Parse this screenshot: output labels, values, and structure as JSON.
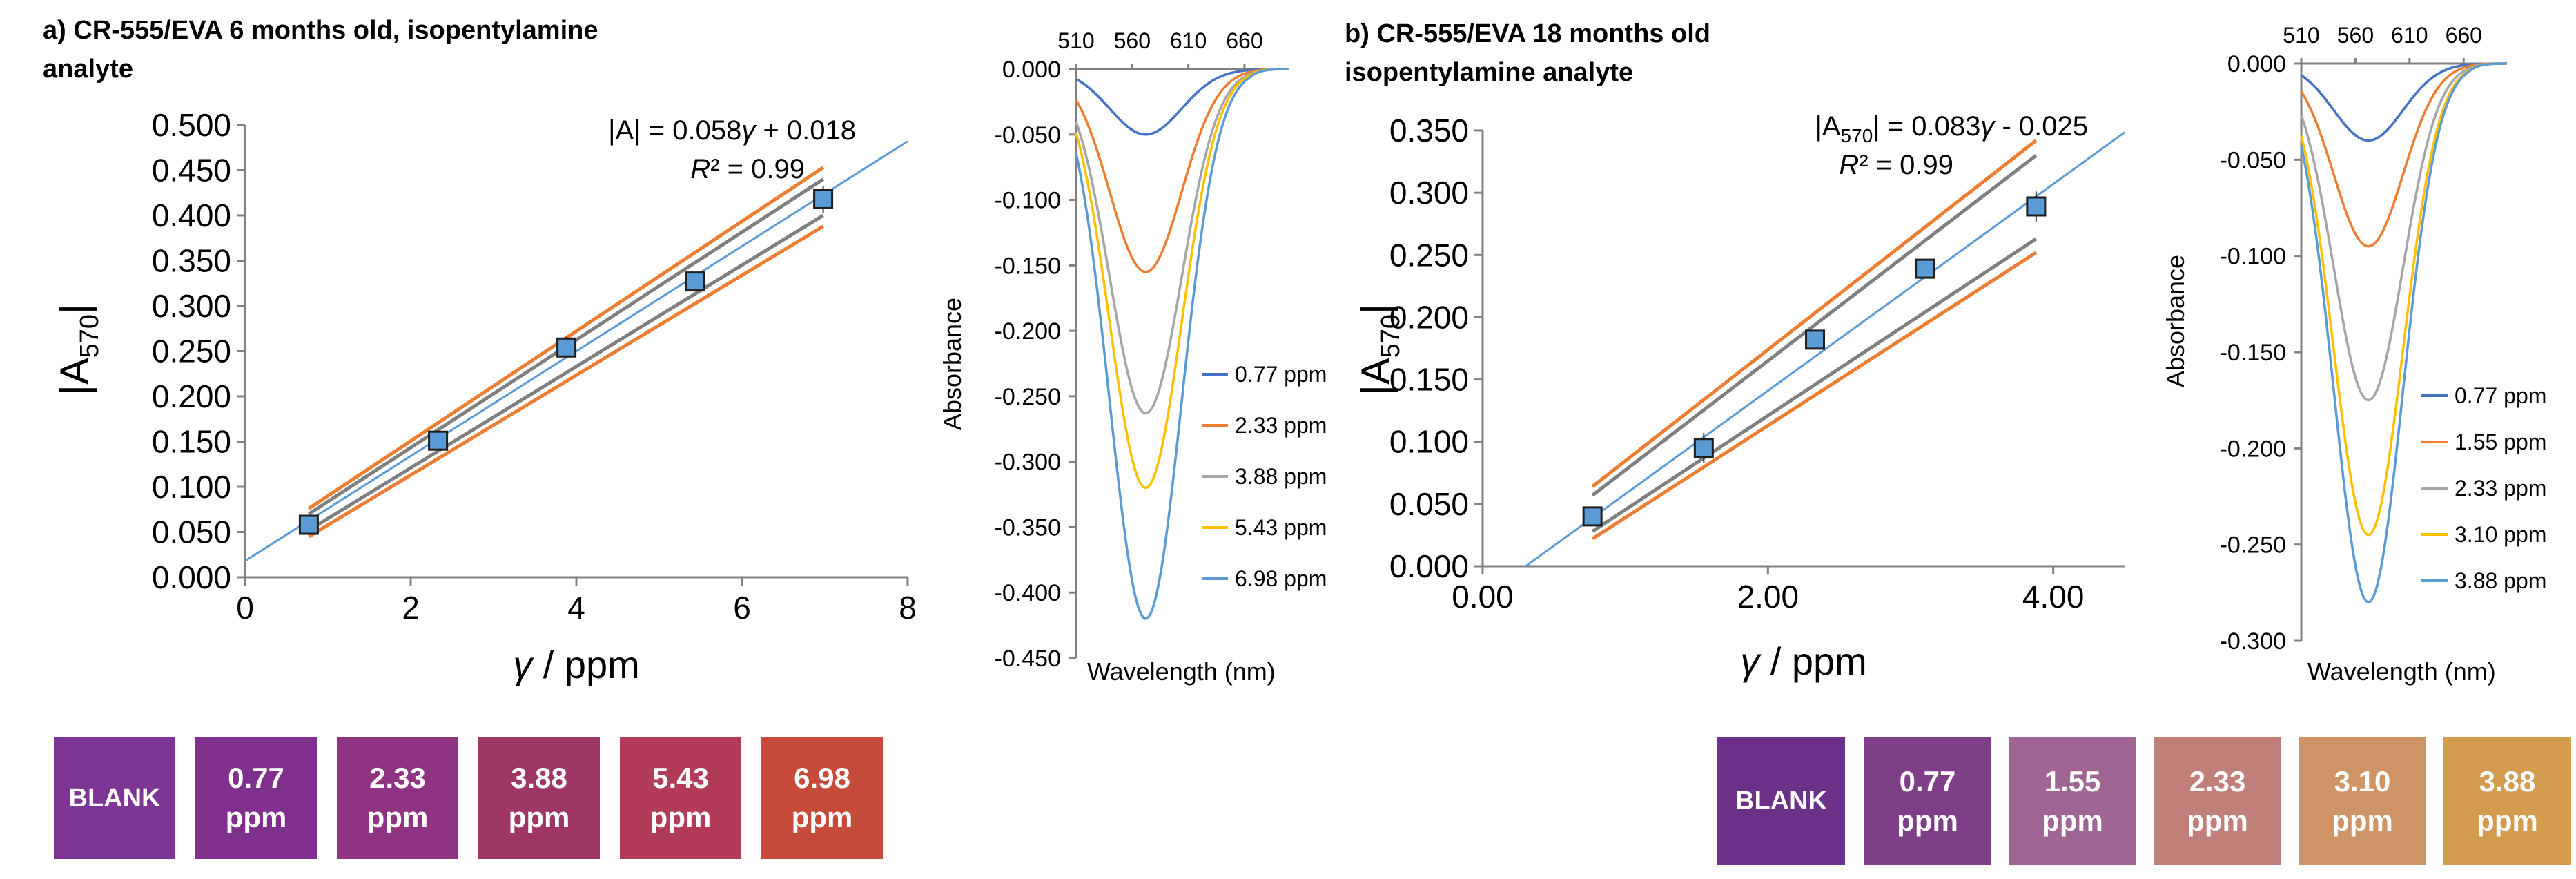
{
  "chart_data": [
    {
      "id": "a_linear",
      "type": "scatter",
      "title_line1": "a) CR-555/EVA 6 months old, isopentylamine",
      "title_line2": "analyte",
      "xlabel_sym": "γ",
      "xlabel_unit": " / ppm",
      "ylabel_main": "|A",
      "ylabel_sub": "570",
      "ylabel_end": "|",
      "xlim": [
        0,
        8
      ],
      "ylim": [
        0.0,
        0.5
      ],
      "xticks": [
        "0",
        "2",
        "4",
        "6",
        "8"
      ],
      "xtick_values": [
        0,
        2,
        4,
        6,
        8
      ],
      "yticks": [
        "0.000",
        "0.050",
        "0.100",
        "0.150",
        "0.200",
        "0.250",
        "0.300",
        "0.350",
        "0.400",
        "0.450",
        "0.500"
      ],
      "ytick_values": [
        0.0,
        0.05,
        0.1,
        0.15,
        0.2,
        0.25,
        0.3,
        0.35,
        0.4,
        0.45,
        0.5
      ],
      "points": {
        "x": [
          0.77,
          2.33,
          3.88,
          5.43,
          6.98
        ],
        "y": [
          0.058,
          0.151,
          0.254,
          0.327,
          0.418
        ],
        "err": [
          0.008,
          0.006,
          0.012,
          0.008,
          0.015
        ]
      },
      "fit": {
        "slope": 0.058,
        "intercept": 0.018,
        "x_range": [
          0,
          8
        ],
        "color": "#5b9bd5"
      },
      "bands": [
        {
          "name": "confidence",
          "color": "#7f7f7f",
          "upper": [
            [
              0.77,
              0.07
            ],
            [
              6.98,
              0.44
            ]
          ],
          "lower": [
            [
              0.77,
              0.052
            ],
            [
              6.98,
              0.4
            ]
          ]
        },
        {
          "name": "prediction",
          "color": "#ed7d31",
          "upper": [
            [
              0.77,
              0.076
            ],
            [
              6.98,
              0.453
            ]
          ],
          "lower": [
            [
              0.77,
              0.045
            ],
            [
              6.98,
              0.388
            ]
          ]
        }
      ],
      "equation": {
        "lhs": "|A|",
        "mid": " = 0.058",
        "sym": "γ",
        "rhs": " + 0.018",
        "r2_label": "R",
        "r2_value": "² = 0.99"
      }
    },
    {
      "id": "a_spectra",
      "type": "line",
      "xlabel": "Wavelength (nm)",
      "ylabel": "Absorbance",
      "top_ticks": [
        "510",
        "560",
        "610",
        "660"
      ],
      "top_tick_values": [
        510,
        560,
        610,
        660
      ],
      "xlim": [
        510,
        700
      ],
      "ylim": [
        -0.45,
        0.0
      ],
      "yticks": [
        "0.000",
        "-0.050",
        "-0.100",
        "-0.150",
        "-0.200",
        "-0.250",
        "-0.300",
        "-0.350",
        "-0.400",
        "-0.450"
      ],
      "ytick_values": [
        0.0,
        -0.05,
        -0.1,
        -0.15,
        -0.2,
        -0.25,
        -0.3,
        -0.35,
        -0.4,
        -0.45
      ],
      "center": 572,
      "sigma": 32,
      "series": [
        {
          "name": "0.77 ppm",
          "peak": -0.05,
          "color": "#4472c4"
        },
        {
          "name": "2.33 ppm",
          "peak": -0.155,
          "color": "#ed7d31"
        },
        {
          "name": "3.88 ppm",
          "peak": -0.263,
          "color": "#a5a5a5"
        },
        {
          "name": "5.43 ppm",
          "peak": -0.32,
          "color": "#ffc000"
        },
        {
          "name": "6.98 ppm",
          "peak": -0.42,
          "color": "#5b9bd5"
        }
      ]
    },
    {
      "id": "b_linear",
      "type": "scatter",
      "title_line1": "b) CR-555/EVA 18 months old",
      "title_line2": "isopentylamine analyte",
      "xlabel_sym": "γ",
      "xlabel_unit": " / ppm",
      "ylabel_main": "|A",
      "ylabel_sub": "570",
      "ylabel_end": "|",
      "xlim": [
        0,
        4.5
      ],
      "ylim": [
        0.0,
        0.35
      ],
      "xticks": [
        "0.00",
        "2.00",
        "4.00"
      ],
      "xtick_values": [
        0,
        2,
        4
      ],
      "yticks": [
        "0.000",
        "0.050",
        "0.100",
        "0.150",
        "0.200",
        "0.250",
        "0.300",
        "0.350"
      ],
      "ytick_values": [
        0.0,
        0.05,
        0.1,
        0.15,
        0.2,
        0.25,
        0.3,
        0.35
      ],
      "points": {
        "x": [
          0.77,
          1.55,
          2.33,
          3.1,
          3.88
        ],
        "y": [
          0.04,
          0.095,
          0.182,
          0.239,
          0.289
        ],
        "err": [
          0.005,
          0.012,
          0.007,
          0.006,
          0.012
        ]
      },
      "fit": {
        "slope": 0.083,
        "intercept": -0.025,
        "x_range": [
          0.3,
          4.5
        ],
        "color": "#5b9bd5"
      },
      "bands": [
        {
          "name": "confidence",
          "color": "#7f7f7f",
          "upper": [
            [
              0.77,
              0.057
            ],
            [
              3.88,
              0.33
            ]
          ],
          "lower": [
            [
              0.77,
              0.028
            ],
            [
              3.88,
              0.263
            ]
          ]
        },
        {
          "name": "prediction",
          "color": "#ed7d31",
          "upper": [
            [
              0.77,
              0.064
            ],
            [
              3.88,
              0.342
            ]
          ],
          "lower": [
            [
              0.77,
              0.022
            ],
            [
              3.88,
              0.252
            ]
          ]
        }
      ],
      "equation": {
        "lhs": "|A",
        "lhs_sub": "570",
        "lhs_end": "|",
        "mid": " = 0.083",
        "sym": "γ",
        "rhs": " - 0.025",
        "r2_label": "R",
        "r2_value": "² = 0.99"
      }
    },
    {
      "id": "b_spectra",
      "type": "line",
      "xlabel": "Wavelength (nm)",
      "ylabel": "Absorbance",
      "top_ticks": [
        "510",
        "560",
        "610",
        "660"
      ],
      "top_tick_values": [
        510,
        560,
        610,
        660
      ],
      "xlim": [
        510,
        700
      ],
      "ylim": [
        -0.3,
        0.0
      ],
      "yticks": [
        "0.000",
        "-0.050",
        "-0.100",
        "-0.150",
        "-0.200",
        "-0.250",
        "-0.300"
      ],
      "ytick_values": [
        0.0,
        -0.05,
        -0.1,
        -0.15,
        -0.2,
        -0.25,
        -0.3
      ],
      "center": 572,
      "sigma": 32,
      "series": [
        {
          "name": "0.77 ppm",
          "peak": -0.04,
          "color": "#4472c4"
        },
        {
          "name": "1.55 ppm",
          "peak": -0.095,
          "color": "#ed7d31"
        },
        {
          "name": "2.33 ppm",
          "peak": -0.175,
          "color": "#a5a5a5"
        },
        {
          "name": "3.10 ppm",
          "peak": -0.245,
          "color": "#ffc000"
        },
        {
          "name": "3.88 ppm",
          "peak": -0.28,
          "color": "#5b9bd5"
        }
      ]
    }
  ],
  "swatches_a": [
    {
      "label1": "BLANK",
      "label2": "",
      "color": "#7d3696"
    },
    {
      "label1": "0.77",
      "label2": "ppm",
      "color": "#7f2f8c"
    },
    {
      "label1": "2.33",
      "label2": "ppm",
      "color": "#8f3383"
    },
    {
      "label1": "3.88",
      "label2": "ppm",
      "color": "#9e3766"
    },
    {
      "label1": "5.43",
      "label2": "ppm",
      "color": "#b23b58"
    },
    {
      "label1": "6.98",
      "label2": "ppm",
      "color": "#c64a3a"
    }
  ],
  "swatches_b": [
    {
      "label1": "BLANK",
      "label2": "",
      "color": "#6b3088"
    },
    {
      "label1": "0.77",
      "label2": "ppm",
      "color": "#7e3e88"
    },
    {
      "label1": "1.55",
      "label2": "ppm",
      "color": "#a06693"
    },
    {
      "label1": "2.33",
      "label2": "ppm",
      "color": "#c17f79"
    },
    {
      "label1": "3.10",
      "label2": "ppm",
      "color": "#cf9465"
    },
    {
      "label1": "3.88",
      "label2": "ppm",
      "color": "#d39b4e"
    }
  ]
}
